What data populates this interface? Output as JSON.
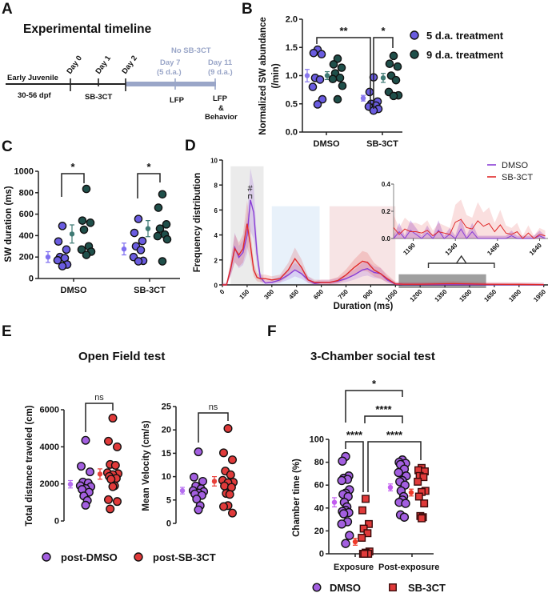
{
  "panels": {
    "A": {
      "letter": "A",
      "title": "Experimental timeline",
      "labels": {
        "early": "Early Juvenile",
        "dpf": "30-56 dpf",
        "day0": "Day 0",
        "day1": "Day 1",
        "day2": "Day 2",
        "sb": "SB-3CT",
        "nosb": "No SB-3CT",
        "day7": "Day 7",
        "day7sub": "(5 d.a.)",
        "day11": "Day 11",
        "day11sub": "(9 d.a.)",
        "lfp1": "LFP",
        "lfp2": "LFP",
        "amp": "&",
        "behavior": "Behavior"
      },
      "colors": {
        "line": "#222222",
        "treat": "#9aa6c8"
      }
    },
    "B": {
      "letter": "B"
    },
    "C": {
      "letter": "C"
    },
    "D": {
      "letter": "D"
    },
    "E": {
      "letter": "E",
      "title": "Open Field test"
    },
    "F": {
      "letter": "F",
      "title": "3-Chamber social test"
    }
  },
  "chart_data": [
    {
      "id": "B",
      "type": "scatter",
      "title": "",
      "xlabel": "",
      "ylabel": "Normalized SW abundance (/min)",
      "categories": [
        "DMSO",
        "SB-3CT"
      ],
      "ylim": [
        0,
        2.0
      ],
      "yticks": [
        "0.0",
        "0.5",
        "1.0",
        "1.5",
        "2.0"
      ],
      "legend": {
        "placement": "right",
        "entries": [
          "5 d.a. treatment",
          "9 d.a. treatment"
        ]
      },
      "series": [
        {
          "name": "5 d.a. treatment",
          "color": "#6a5ce0",
          "points": {
            "DMSO": [
              1.46,
              1.4,
              1.38,
              0.96,
              0.93,
              0.8,
              0.58,
              0.49
            ],
            "SB-3CT": [
              0.97,
              0.71,
              0.54,
              0.5,
              0.47,
              0.45,
              0.41,
              0.38
            ]
          },
          "mean": {
            "DMSO": 1.0,
            "SB-3CT": 0.6
          },
          "sem": {
            "DMSO": 0.11,
            "SB-3CT": 0.05
          }
        },
        {
          "name": "9 d.a. treatment",
          "color": "#1f4f4a",
          "points": {
            "DMSO": [
              1.3,
              1.2,
              1.14,
              1.04,
              0.96,
              0.94,
              0.82,
              0.58
            ],
            "SB-3CT": [
              1.35,
              1.21,
              1.16,
              1.0,
              0.92,
              0.71,
              0.65,
              0.64
            ]
          },
          "mean": {
            "DMSO": 1.0,
            "SB-3CT": 0.96
          },
          "sem": {
            "DMSO": 0.07,
            "SB-3CT": 0.08
          }
        }
      ],
      "annotations": [
        {
          "text": "**",
          "between": "DMSO 5d.a. vs SB-3CT 5d.a."
        },
        {
          "text": "*",
          "between": "SB-3CT 5d.a. vs SB-3CT 9d.a."
        }
      ]
    },
    {
      "id": "C",
      "type": "scatter",
      "xlabel": "",
      "ylabel": "SW duration  (ms)",
      "categories": [
        "DMSO",
        "SB-3CT"
      ],
      "ylim": [
        0,
        1000
      ],
      "yticks": [
        "0",
        "200",
        "400",
        "600",
        "800",
        "1000"
      ],
      "series": [
        {
          "name": "5 d.a. treatment",
          "color": "#6a5ce0",
          "points": {
            "DMSO": [
              490,
              345,
              270,
              200,
              190,
              170,
              130,
              115
            ],
            "SB-3CT": [
              555,
              425,
              350,
              300,
              265,
              200,
              165,
              160
            ]
          },
          "mean": {
            "DMSO": 200,
            "SB-3CT": 275
          },
          "sem": {
            "DMSO": 50,
            "SB-3CT": 55
          }
        },
        {
          "name": "9 d.a. treatment",
          "color": "#1f4f4a",
          "points": {
            "DMSO": [
              835,
              540,
              520,
              455,
              300,
              270,
              250,
              220
            ],
            "SB-3CT": [
              785,
              660,
              505,
              465,
              410,
              395,
              365,
              160
            ]
          },
          "mean": {
            "DMSO": 415,
            "SB-3CT": 465
          },
          "sem": {
            "DMSO": 85,
            "SB-3CT": 75
          }
        }
      ],
      "annotations": [
        {
          "text": "*",
          "group": "DMSO"
        },
        {
          "text": "*",
          "group": "SB-3CT"
        }
      ]
    },
    {
      "id": "D",
      "type": "line",
      "xlabel": "Duration (ms)",
      "ylabel": "Frequency distribution",
      "xlim": [
        0,
        2000
      ],
      "ylim": [
        0,
        10
      ],
      "xticks": [
        "0",
        "150",
        "300",
        "450",
        "600",
        "750",
        "900",
        "1050",
        "1200",
        "1350",
        "1500",
        "1650",
        "1800",
        "1950"
      ],
      "yticks": [
        "0",
        "2",
        "4",
        "6",
        "8",
        "10"
      ],
      "legend": {
        "placement": "top-right",
        "entries": [
          "DMSO",
          "SB-3CT"
        ]
      },
      "shaded_regions": [
        {
          "x": [
            50,
            250
          ],
          "color": "#e8e8e8"
        },
        {
          "x": [
            300,
            590
          ],
          "color": "#e4eef9"
        },
        {
          "x": [
            650,
            1050
          ],
          "color": "#f6dfe0"
        },
        {
          "x": [
            1070,
            1600
          ],
          "color": "#9a9a9a"
        }
      ],
      "annotation": "#",
      "series": [
        {
          "name": "DMSO",
          "color": "#8a3fd6",
          "x": [
            0,
            25,
            50,
            75,
            100,
            125,
            150,
            170,
            190,
            210,
            230,
            260,
            300,
            350,
            400,
            440,
            480,
            520,
            560,
            600,
            650,
            700,
            750,
            800,
            850,
            880,
            920,
            960,
            1000,
            1050,
            1100,
            1200,
            1400,
            1600,
            1800,
            1950
          ],
          "y": [
            0,
            0,
            1.2,
            3.0,
            2.2,
            2.6,
            4.0,
            6.8,
            5.8,
            2.5,
            0.6,
            0.15,
            0.2,
            0.4,
            0.8,
            1.2,
            0.9,
            0.4,
            0.1,
            0.2,
            0.2,
            0.3,
            0.5,
            0.8,
            1.2,
            1.3,
            1.0,
            0.9,
            0.4,
            0.05,
            0.02,
            0.02,
            0.02,
            0.01,
            0.01,
            0
          ]
        },
        {
          "name": "SB-3CT",
          "color": "#e02a2a",
          "x": [
            0,
            25,
            50,
            75,
            100,
            125,
            150,
            170,
            190,
            210,
            230,
            260,
            300,
            350,
            400,
            440,
            480,
            520,
            560,
            600,
            650,
            700,
            750,
            800,
            850,
            880,
            920,
            960,
            1000,
            1050,
            1100,
            1200,
            1400,
            1600,
            1800,
            1950
          ],
          "y": [
            0,
            0,
            1.3,
            2.9,
            2.4,
            2.9,
            4.9,
            3.2,
            1.2,
            0.6,
            0.5,
            0.5,
            0.4,
            0.5,
            1.2,
            2.1,
            1.4,
            0.4,
            0.2,
            0.2,
            0.2,
            0.35,
            0.8,
            1.4,
            1.9,
            1.8,
            1.2,
            0.9,
            0.5,
            0.08,
            0.05,
            0.05,
            0.1,
            0.05,
            0.04,
            0.02
          ]
        }
      ],
      "inset": {
        "xlim": [
          1120,
          1670
        ],
        "ylim": [
          0,
          0.4
        ],
        "xticks": [
          "1190",
          "1340",
          "1490",
          "1640"
        ],
        "yticks": [
          "0.0",
          "0.2",
          "0.4"
        ],
        "series": [
          {
            "name": "DMSO",
            "x": [
              1120,
              1140,
              1160,
              1180,
              1200,
              1220,
              1240,
              1260,
              1280,
              1300,
              1320,
              1340,
              1360,
              1380,
              1400,
              1420,
              1440,
              1460,
              1480,
              1500,
              1520,
              1540,
              1560,
              1580,
              1600,
              1620,
              1640,
              1660
            ],
            "y": [
              0.0,
              0.05,
              0.0,
              0.06,
              0.03,
              0.0,
              0.04,
              0.0,
              0.06,
              0.0,
              0.03,
              0.0,
              0.07,
              0.0,
              0.05,
              0.0,
              0.0,
              0.0,
              0.0,
              0.0,
              0.0,
              0.02,
              0.0,
              0.0,
              0.0,
              0.0,
              0.02,
              0.0
            ]
          },
          {
            "name": "SB-3CT",
            "x": [
              1120,
              1140,
              1160,
              1180,
              1200,
              1220,
              1240,
              1260,
              1280,
              1300,
              1320,
              1340,
              1360,
              1380,
              1400,
              1420,
              1440,
              1460,
              1480,
              1500,
              1520,
              1540,
              1560,
              1580,
              1600,
              1620,
              1640,
              1660
            ],
            "y": [
              0.08,
              0.03,
              0.07,
              0.05,
              0.05,
              0.04,
              0.06,
              0.02,
              0.05,
              0.04,
              0.03,
              0.12,
              0.14,
              0.08,
              0.07,
              0.13,
              0.09,
              0.11,
              0.05,
              0.1,
              0.04,
              0.03,
              0.05,
              0.0,
              0.04,
              0.0,
              0.03,
              0.02
            ]
          }
        ]
      }
    },
    {
      "id": "E1",
      "type": "scatter",
      "ylabel": "Total distance traveled (cm)",
      "ylim": [
        0,
        6000
      ],
      "yticks": [
        "0",
        "2000",
        "4000",
        "6000"
      ],
      "series": [
        {
          "name": "post-DMSO",
          "color": "#a35fe0",
          "points": [
            4350,
            2950,
            2650,
            2100,
            2050,
            1900,
            1850,
            1750,
            1700,
            1550,
            1350,
            1100,
            850
          ],
          "mean": 1980,
          "sem": 200
        },
        {
          "name": "post-SB-3CT",
          "color": "#e03a3a",
          "points": [
            5550,
            4300,
            4000,
            3050,
            3000,
            2600,
            2550,
            2500,
            2400,
            2300,
            2250,
            1900,
            1850,
            1150,
            1050,
            650
          ],
          "mean": 2530,
          "sem": 280
        }
      ],
      "annotation": "ns"
    },
    {
      "id": "E2",
      "type": "scatter",
      "ylabel": "Mean Velocity (cm/s)",
      "ylim": [
        0,
        25
      ],
      "yticks": [
        "0",
        "5",
        "10",
        "15",
        "20",
        "25"
      ],
      "series": [
        {
          "name": "post-DMSO",
          "color": "#a35fe0",
          "points": [
            15.3,
            9.9,
            9.0,
            8.0,
            7.4,
            7.0,
            6.8,
            6.5,
            6.3,
            6.0,
            5.2,
            3.8,
            2.9
          ],
          "mean": 7.0,
          "sem": 0.7
        },
        {
          "name": "post-SB-3CT",
          "color": "#e03a3a",
          "points": [
            20.3,
            15.1,
            13.6,
            11.2,
            10.4,
            9.2,
            8.8,
            8.7,
            8.0,
            7.7,
            6.4,
            6.2,
            3.8,
            3.6,
            2.2
          ],
          "mean": 9.0,
          "sem": 1.0
        }
      ],
      "annotation": "ns",
      "legend": {
        "placement": "bottom",
        "entries": [
          "post-DMSO",
          "post-SB-3CT"
        ]
      }
    },
    {
      "id": "F",
      "type": "scatter",
      "ylabel": "Chamber time (%)",
      "categories": [
        "Exposure",
        "Post-exposure"
      ],
      "ylim": [
        0,
        100
      ],
      "yticks": [
        "0",
        "20",
        "40",
        "60",
        "80",
        "100"
      ],
      "legend": {
        "placement": "bottom",
        "entries": [
          "DMSO",
          "SB-3CT"
        ]
      },
      "series": [
        {
          "name": "DMSO",
          "color": "#a35fe0",
          "marker": "circle",
          "points": {
            "Exposure": [
              85,
              81,
              68,
              66,
              65,
              64,
              56,
              53,
              52,
              50,
              45,
              41,
              38,
              37,
              36,
              35,
              28,
              26,
              16,
              9
            ],
            "Post-exposure": [
              82,
              80,
              79,
              78,
              74,
              71,
              68,
              64,
              63,
              60,
              55,
              50,
              47,
              45,
              44,
              34,
              32
            ]
          },
          "mean": {
            "Exposure": 45,
            "Post-exposure": 58
          },
          "sem": {
            "Exposure": 4,
            "Post-exposure": 3
          }
        },
        {
          "name": "SB-3CT",
          "color": "#e03a3a",
          "marker": "square",
          "points": {
            "Exposure": [
              48,
              38,
              26,
              22,
              18,
              14,
              2,
              1,
              0,
              0,
              0
            ],
            "Post-exposure": [
              75,
              73,
              72,
              68,
              67,
              63,
              55,
              54,
              50,
              44,
              33,
              32,
              31
            ]
          },
          "mean": {
            "Exposure": 10.5,
            "Post-exposure": 53.5
          },
          "sem": {
            "Exposure": 3,
            "Post-exposure": 3
          }
        }
      ],
      "annotations": [
        "*",
        "****",
        "****",
        "****"
      ]
    }
  ]
}
